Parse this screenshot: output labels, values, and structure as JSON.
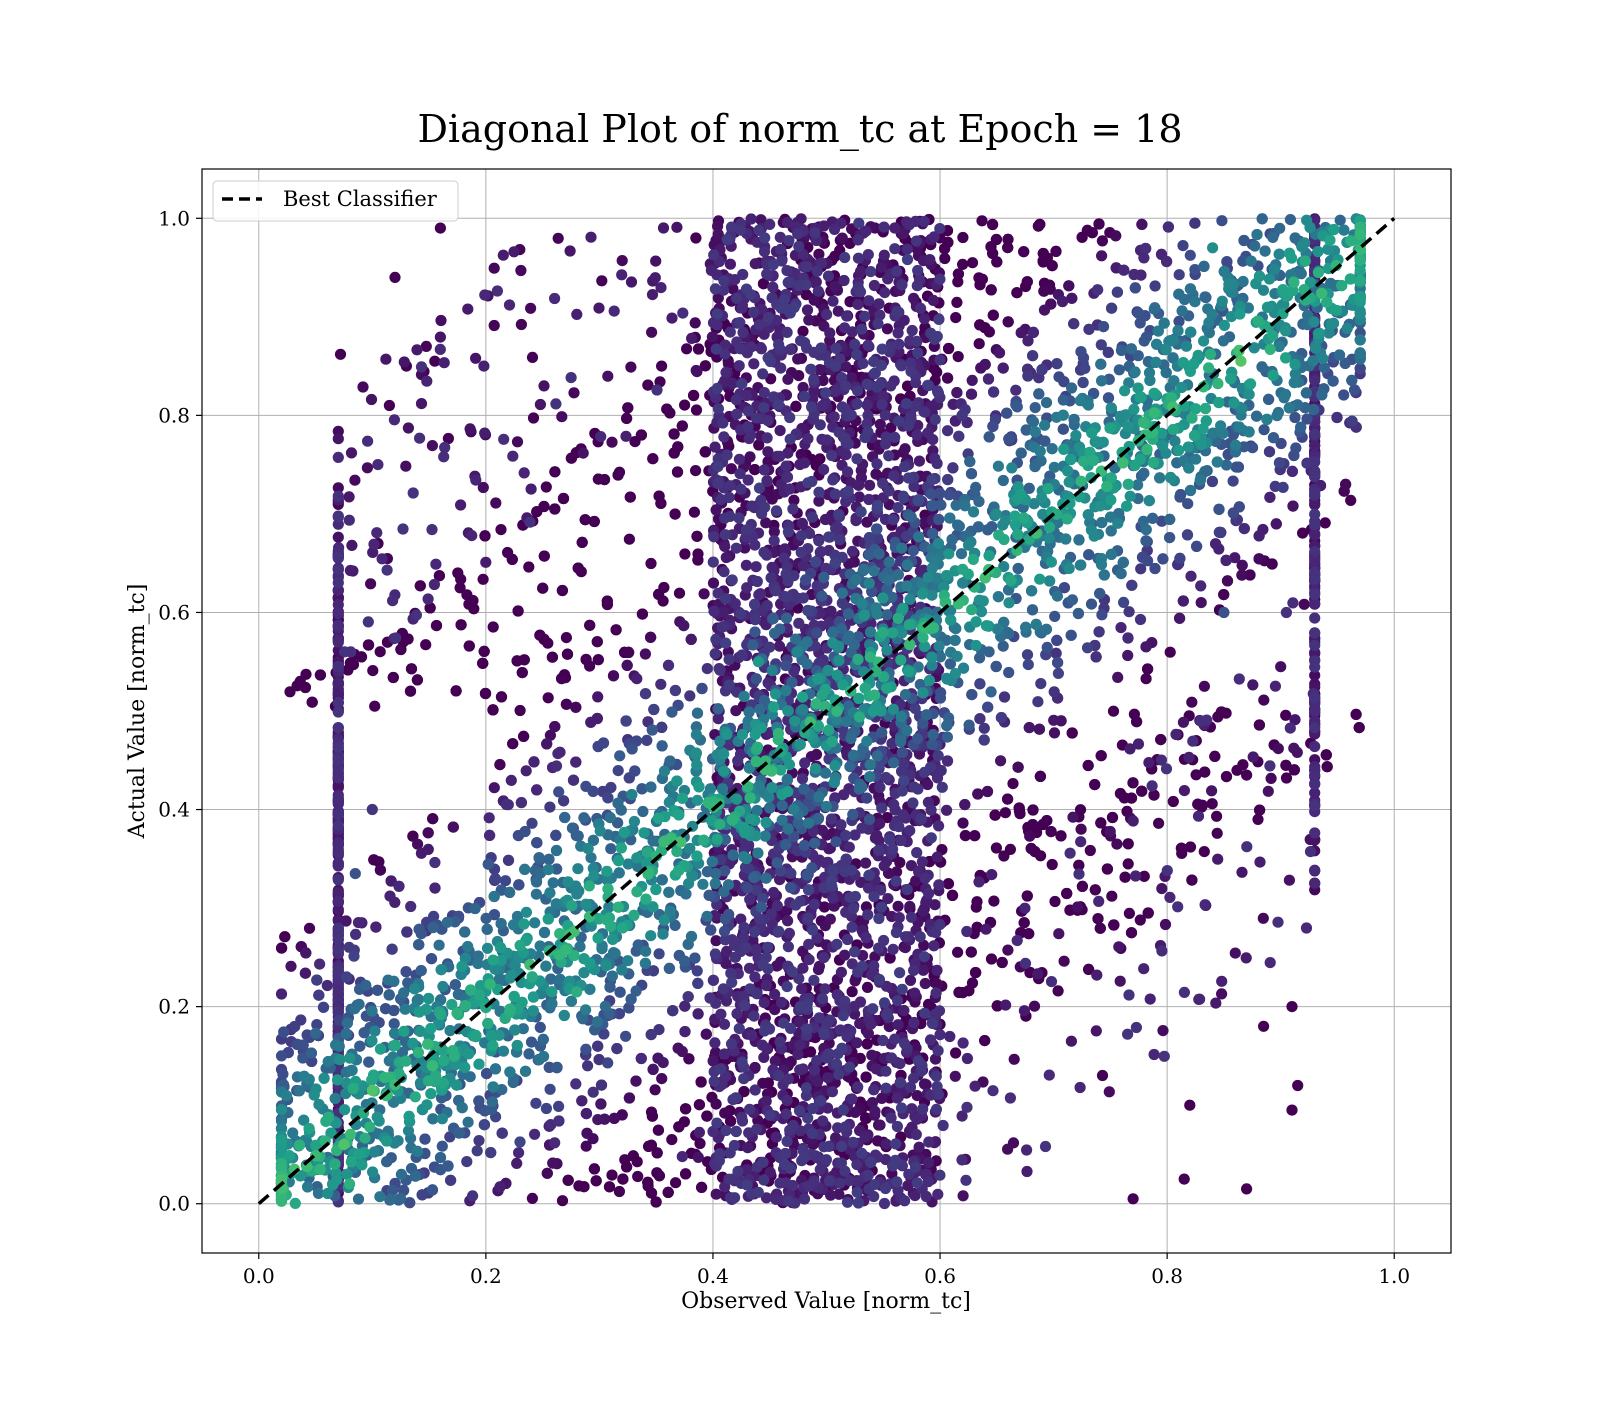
{
  "chart_data": {
    "type": "scatter",
    "title": "Diagonal Plot of norm_tc at Epoch = 18",
    "xlabel": "Observed Value [norm_tc]",
    "ylabel": "Actual Value [norm_tc]",
    "xlim": [
      -0.05,
      1.05
    ],
    "ylim": [
      -0.05,
      1.05
    ],
    "xticks": [
      0.0,
      0.2,
      0.4,
      0.6,
      0.8,
      1.0
    ],
    "yticks": [
      0.0,
      0.2,
      0.4,
      0.6,
      0.8,
      1.0
    ],
    "xtick_labels": [
      "0.0",
      "0.2",
      "0.4",
      "0.6",
      "0.8",
      "1.0"
    ],
    "ytick_labels": [
      "0.0",
      "0.2",
      "0.4",
      "0.6",
      "0.8",
      "1.0"
    ],
    "grid": true,
    "legend_placement": "upper-left",
    "colormap": "viridis",
    "colors": {
      "dark": "#440154",
      "mid_dark": "#3b528b",
      "mid": "#21918c",
      "mid_light": "#5ec962",
      "light": "#fde725",
      "reference_line": "#000000",
      "grid": "#b0b0b0"
    },
    "reference_line": {
      "name": "Best Classifier",
      "style": "dashed",
      "x": [
        0.0,
        1.0
      ],
      "y": [
        0.0,
        1.0
      ]
    },
    "series": [
      {
        "name": "",
        "x_range": [
          0.02,
          0.97
        ],
        "y_range": [
          0.0,
          1.0
        ],
        "note_points": [
          [
            0.072,
            0.862
          ],
          [
            0.155,
            0.855
          ],
          [
            0.16,
            0.99
          ],
          [
            0.12,
            0.94
          ],
          [
            0.385,
            0.98
          ],
          [
            0.13,
            0.85
          ],
          [
            0.115,
            0.81
          ],
          [
            0.105,
            0.67
          ],
          [
            0.1,
            0.4
          ],
          [
            0.085,
            0.335
          ],
          [
            0.905,
            0.6
          ],
          [
            0.9,
            0.545
          ],
          [
            0.87,
            0.435
          ],
          [
            0.88,
            0.39
          ],
          [
            0.91,
            0.2
          ],
          [
            0.885,
            0.18
          ],
          [
            0.915,
            0.12
          ],
          [
            0.91,
            0.095
          ],
          [
            0.87,
            0.015
          ],
          [
            0.815,
            0.025
          ],
          [
            0.77,
            0.005
          ],
          [
            0.82,
            0.1
          ],
          [
            0.85,
            0.6
          ],
          [
            0.865,
            0.855
          ],
          [
            0.84,
            0.97
          ],
          [
            0.075,
            0.06
          ],
          [
            0.1,
            0.115
          ],
          [
            0.08,
            0.02
          ],
          [
            0.28,
            0.215
          ],
          [
            0.44,
            0.55
          ]
        ]
      }
    ]
  }
}
